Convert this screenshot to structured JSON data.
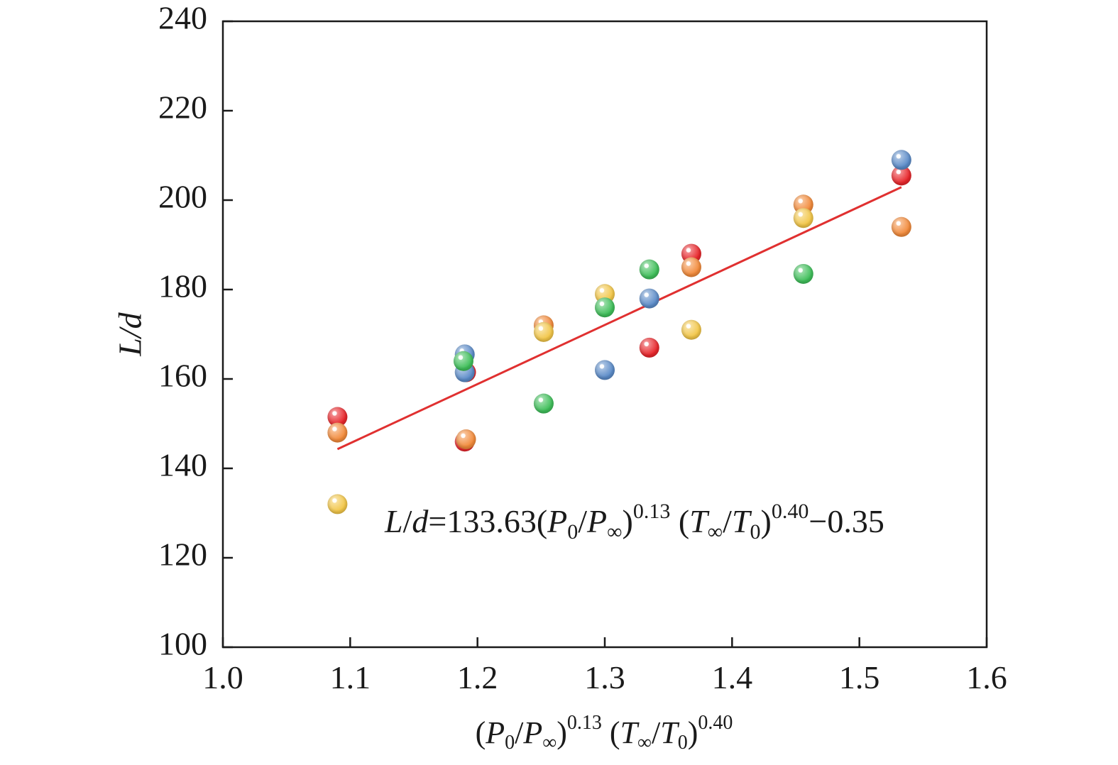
{
  "chart_data": {
    "type": "scatter",
    "title": "",
    "xlabel": "(P0/P∞)0.13 (T∞/T0)0.40",
    "ylabel": "L/d",
    "xlim": [
      1.0,
      1.6
    ],
    "ylim": [
      100,
      240
    ],
    "x_ticks": [
      "1.0",
      "1.1",
      "1.2",
      "1.3",
      "1.4",
      "1.5",
      "1.6"
    ],
    "y_ticks": [
      "100",
      "120",
      "140",
      "160",
      "180",
      "200",
      "220",
      "240"
    ],
    "grid": false,
    "legend": "none",
    "series": [
      {
        "color": "#e8262b",
        "points": [
          [
            1.09,
            151.5
          ],
          [
            1.19,
            146.0
          ],
          [
            1.191,
            161.5
          ],
          [
            1.335,
            167.0
          ],
          [
            1.368,
            188.0
          ],
          [
            1.533,
            205.5
          ]
        ]
      },
      {
        "color": "#f28a3a",
        "points": [
          [
            1.09,
            148.0
          ],
          [
            1.191,
            146.5
          ],
          [
            1.252,
            172.0
          ],
          [
            1.368,
            185.0
          ],
          [
            1.456,
            199.0
          ],
          [
            1.533,
            194.0
          ]
        ]
      },
      {
        "color": "#f2c648",
        "points": [
          [
            1.09,
            132.0
          ],
          [
            1.252,
            170.5
          ],
          [
            1.3,
            179.0
          ],
          [
            1.368,
            171.0
          ],
          [
            1.456,
            196.0
          ]
        ]
      },
      {
        "color": "#5b8bc8",
        "points": [
          [
            1.19,
            161.5
          ],
          [
            1.19,
            165.5
          ],
          [
            1.3,
            162.0
          ],
          [
            1.335,
            178.0
          ],
          [
            1.533,
            209.0
          ]
        ]
      },
      {
        "color": "#3fbf5a",
        "points": [
          [
            1.189,
            164.0
          ],
          [
            1.252,
            154.5
          ],
          [
            1.3,
            176.0
          ],
          [
            1.335,
            184.5
          ],
          [
            1.456,
            183.5
          ]
        ]
      }
    ],
    "fit_line": {
      "color": "#e03030",
      "x": [
        1.09,
        1.533
      ],
      "y": [
        144.3,
        202.9
      ]
    },
    "annotation": "L/d=133.63(P0/P∞)0.13 (T∞/T0)0.40−0.35"
  }
}
